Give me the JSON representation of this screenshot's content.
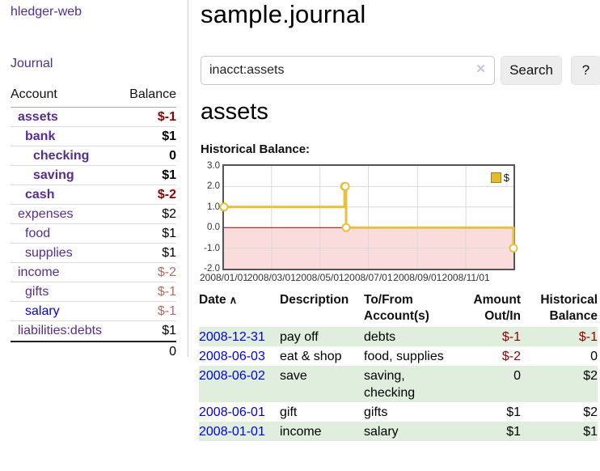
{
  "app": {
    "brand": "hledger-web",
    "nav_journal": "Journal"
  },
  "sidebar": {
    "headers": {
      "account": "Account",
      "balance": "Balance"
    },
    "rows": [
      {
        "account": "assets",
        "balance": "$-1"
      },
      {
        "account": "bank",
        "balance": "$1"
      },
      {
        "account": "checking",
        "balance": "0"
      },
      {
        "account": "saving",
        "balance": "$1"
      },
      {
        "account": "cash",
        "balance": "$-2"
      },
      {
        "account": "expenses",
        "balance": "$2"
      },
      {
        "account": "food",
        "balance": "$1"
      },
      {
        "account": "supplies",
        "balance": "$1"
      },
      {
        "account": "income",
        "balance": "$-2"
      },
      {
        "account": "gifts",
        "balance": "$-1"
      },
      {
        "account": "salary",
        "balance": "$-1"
      },
      {
        "account": "liabilities:debts",
        "balance": "$1"
      }
    ],
    "total": "0"
  },
  "main": {
    "title": "sample.journal",
    "search": {
      "value": "inacct:assets",
      "clear_icon": "×",
      "search_button": "Search",
      "help_button": "?"
    },
    "account_heading": "assets",
    "chart_label": "Historical Balance:",
    "register": {
      "headers": {
        "date": "Date",
        "sort_icon": "∧",
        "description": "Description",
        "accounts": "To/From Account(s)",
        "amount": "Amount Out/In",
        "balance": "Historical Balance"
      },
      "rows": [
        {
          "date": "2008-12-31",
          "description": "pay off",
          "accounts": "debts",
          "amount": "$-1",
          "balance": "$-1"
        },
        {
          "date": "2008-06-03",
          "description": "eat & shop",
          "accounts": "food, supplies",
          "amount": "$-2",
          "balance": "0"
        },
        {
          "date": "2008-06-02",
          "description": "save",
          "accounts": "saving, checking",
          "amount": "0",
          "balance": "$2"
        },
        {
          "date": "2008-06-01",
          "description": "gift",
          "accounts": "gifts",
          "amount": "$1",
          "balance": "$2"
        },
        {
          "date": "2008-01-01",
          "description": "income",
          "accounts": "salary",
          "amount": "$1",
          "balance": "$1"
        }
      ]
    }
  },
  "colors": {
    "link_purple": "#552d90",
    "link_blue": "#0000e6",
    "negative_strong": "#8f0000",
    "negative_soft": "#b86a6a",
    "row_stripe_green": "#dfeedd",
    "button_gray": "#ededed"
  },
  "chart_data": {
    "type": "line",
    "step": true,
    "title": "Historical Balance:",
    "legend": [
      {
        "label": "$",
        "color": "#e7c13d"
      }
    ],
    "ylim": [
      -2,
      3
    ],
    "y_ticks": [
      3,
      2,
      1,
      0,
      -1,
      -2
    ],
    "y_tick_labels": [
      "3.0",
      "2.0",
      "1.0",
      "0.0",
      "-1.0",
      "-2.0"
    ],
    "x_range_days": 365,
    "x_ticks": [
      {
        "label": "2008/01/01",
        "day": 0
      },
      {
        "label": "2008/03/01",
        "day": 60
      },
      {
        "label": "2008/05/01",
        "day": 121
      },
      {
        "label": "2008/07/01",
        "day": 182
      },
      {
        "label": "2008/09/01",
        "day": 244
      },
      {
        "label": "2008/11/01",
        "day": 305
      }
    ],
    "series": [
      {
        "name": "$",
        "points": [
          {
            "date": "2008-01-01",
            "day": 0,
            "value": 1
          },
          {
            "date": "2008-06-01",
            "day": 152,
            "value": 2
          },
          {
            "date": "2008-06-02",
            "day": 153,
            "value": 2
          },
          {
            "date": "2008-06-03",
            "day": 154,
            "value": 0
          },
          {
            "date": "2008-12-31",
            "day": 365,
            "value": -1
          }
        ]
      }
    ],
    "line_color": "#e7c13d",
    "marker_fill": "#ffffff",
    "negative_region_color": "#fbdcdc",
    "zero_line_color": "#8b0000",
    "grid_color": "#d9d9d9"
  }
}
